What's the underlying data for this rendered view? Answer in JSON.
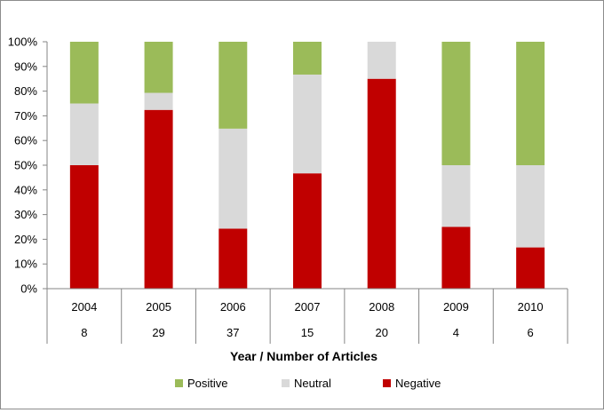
{
  "chart_data": {
    "type": "bar",
    "stacked": true,
    "title": "",
    "xlabel": "Year / Number of Articles",
    "ylabel": "",
    "ylim": [
      0,
      100
    ],
    "y_ticks": [
      "0%",
      "10%",
      "20%",
      "30%",
      "40%",
      "50%",
      "60%",
      "70%",
      "80%",
      "90%",
      "100%"
    ],
    "grid": false,
    "legend_position": "bottom",
    "categories": [
      "2004",
      "2005",
      "2006",
      "2007",
      "2008",
      "2009",
      "2010"
    ],
    "article_counts": [
      "8",
      "29",
      "37",
      "15",
      "20",
      "4",
      "6"
    ],
    "series": [
      {
        "name": "Negative",
        "color": "#c00000",
        "values": [
          50,
          72.4,
          24.3,
          46.7,
          85,
          25,
          16.7
        ]
      },
      {
        "name": "Neutral",
        "color": "#d9d9d9",
        "values": [
          25,
          6.9,
          40.5,
          40,
          15,
          25,
          33.3
        ]
      },
      {
        "name": "Positive",
        "color": "#9bbb59",
        "values": [
          25,
          20.7,
          35.2,
          13.3,
          0,
          50,
          50
        ]
      }
    ],
    "legend_order": [
      "Positive",
      "Neutral",
      "Negative"
    ]
  }
}
